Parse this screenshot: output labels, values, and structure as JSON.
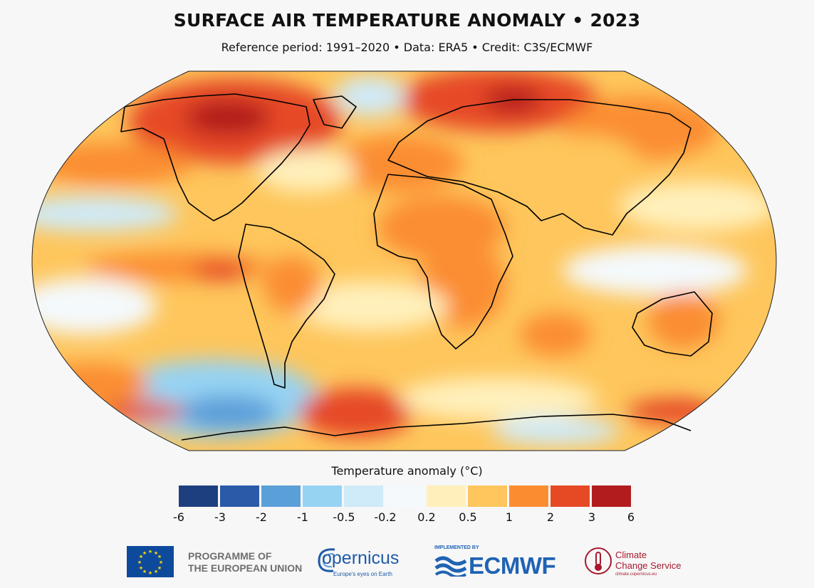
{
  "header": {
    "title": "SURFACE AIR TEMPERATURE ANOMALY • 2023",
    "subtitle": "Reference period: 1991–2020 • Data: ERA5 • Credit: C3S/ECMWF"
  },
  "legend": {
    "title": "Temperature anomaly (°C)",
    "ticks": [
      "-6",
      "-3",
      "-2",
      "-1",
      "-0.5",
      "-0.2",
      "0.2",
      "0.5",
      "1",
      "2",
      "3",
      "6"
    ],
    "colors": [
      "#1e3f7f",
      "#2b5aa8",
      "#5b9fd9",
      "#96d3f3",
      "#cfeaf8",
      "#f4f9fc",
      "#fff0bb",
      "#fec65c",
      "#fb8d30",
      "#e64a25",
      "#b31c1e"
    ]
  },
  "logos": {
    "eu_line1": "PROGRAMME OF",
    "eu_line2": "THE EUROPEAN UNION",
    "copernicus": "opernicus",
    "copernicus_tagline": "Europe's eyes on Earth",
    "ecmwf_small": "IMPLEMENTED BY",
    "ecmwf": "ECMWF",
    "ccs_line1": "Climate",
    "ccs_line2": "Change Service",
    "ccs_url": "climate.copernicus.eu"
  },
  "icons": [
    "eu-flag-icon",
    "copernicus-swirl-icon",
    "ecmwf-waves-icon",
    "ccs-thermometer-icon"
  ]
}
